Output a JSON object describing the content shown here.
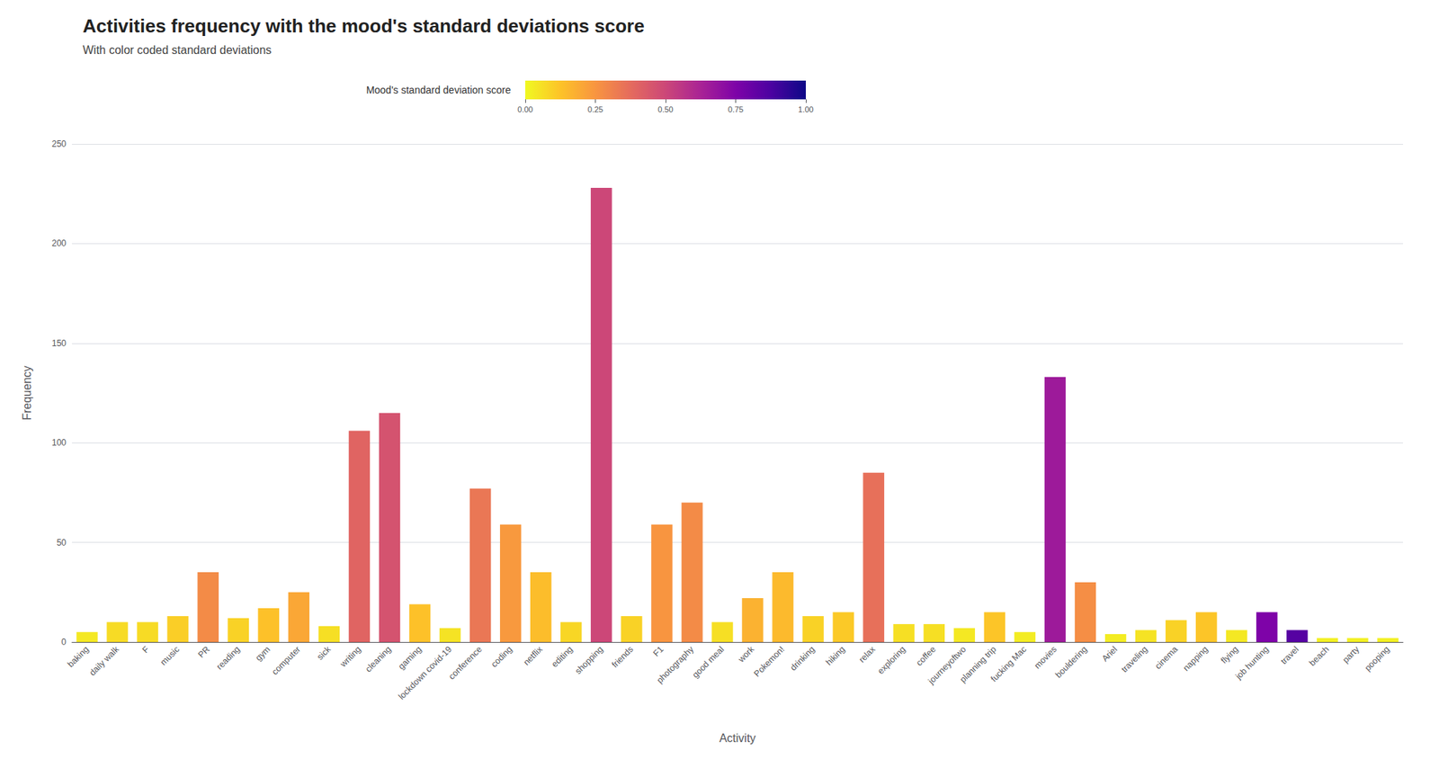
{
  "chart_data": {
    "type": "bar",
    "title": "Activities frequency with the mood's standard deviations score",
    "subtitle": "With color coded standard deviations",
    "xlabel": "Activity",
    "ylabel": "Frequency",
    "categories": [
      "baking",
      "daily walk",
      "F",
      "music",
      "PR",
      "reading",
      "gym",
      "computer",
      "sick",
      "writing",
      "cleaning",
      "gaming",
      "lockdown covid-19",
      "conference",
      "coding",
      "netflix",
      "editing",
      "shopping",
      "friends",
      "F1",
      "photography",
      "good meal",
      "work",
      "Pokemon!",
      "drinking",
      "hiking",
      "relax",
      "exploring",
      "coffee",
      "journeyoftwo",
      "planning trip",
      "fucking Mac",
      "movies",
      "bouldering",
      "Ariel",
      "traveling",
      "cinema",
      "napping",
      "flying",
      "job hunting",
      "travel",
      "beach",
      "party",
      "pooping"
    ],
    "values": [
      5,
      10,
      10,
      13,
      35,
      12,
      17,
      25,
      8,
      106,
      115,
      19,
      7,
      77,
      59,
      35,
      10,
      228,
      13,
      59,
      70,
      10,
      22,
      35,
      13,
      15,
      85,
      9,
      9,
      7,
      15,
      5,
      133,
      30,
      4,
      6,
      11,
      15,
      6,
      15,
      6,
      2,
      2,
      2
    ],
    "std_scores": [
      0.04,
      0.07,
      0.07,
      0.1,
      0.28,
      0.09,
      0.13,
      0.2,
      0.06,
      0.4,
      0.46,
      0.13,
      0.05,
      0.34,
      0.24,
      0.14,
      0.08,
      0.5,
      0.09,
      0.25,
      0.28,
      0.06,
      0.17,
      0.15,
      0.09,
      0.11,
      0.36,
      0.06,
      0.06,
      0.04,
      0.12,
      0.03,
      0.66,
      0.27,
      0.03,
      0.05,
      0.09,
      0.12,
      0.04,
      0.75,
      0.85,
      0.02,
      0.02,
      0.02
    ],
    "colorbar_label": "Mood's standard deviation score",
    "colorbar_range": [
      0,
      1
    ],
    "colorbar_ticks": [
      {
        "value": 0,
        "label": "0.00"
      },
      {
        "value": 0.25,
        "label": "0.25"
      },
      {
        "value": 0.5,
        "label": "0.50"
      },
      {
        "value": 0.75,
        "label": "0.75"
      },
      {
        "value": 1,
        "label": "1.00"
      }
    ],
    "ylim": [
      0,
      250
    ],
    "yticks": [
      0,
      50,
      100,
      150,
      200,
      250
    ],
    "grid": true
  }
}
